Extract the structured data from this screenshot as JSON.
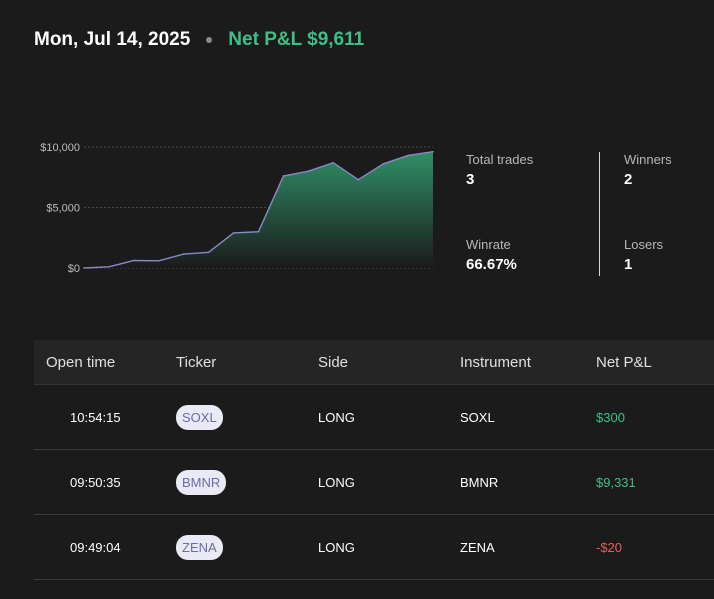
{
  "header": {
    "date": "Mon, Jul 14, 2025",
    "net_pnl": "Net P&L $9,611"
  },
  "chart_data": {
    "type": "area",
    "y_ticks": [
      "$10,000",
      "$5,000",
      "$0"
    ],
    "ylim": [
      0,
      10000
    ],
    "grid": true,
    "series": [
      {
        "values": [
          0,
          100,
          620,
          590,
          1150,
          1300,
          2900,
          3000,
          7600,
          8000,
          8700,
          7300,
          8600,
          9300,
          9611
        ]
      }
    ],
    "colors": {
      "line": "#8b87c8",
      "fill_top": "#2f8f68",
      "fill_bottom": "#1b1b1b"
    }
  },
  "stats": {
    "total_trades_label": "Total trades",
    "total_trades": "3",
    "winners_label": "Winners",
    "winners": "2",
    "winrate_label": "Winrate",
    "winrate": "66.67%",
    "losers_label": "Losers",
    "losers": "1"
  },
  "table": {
    "headers": [
      "Open time",
      "Ticker",
      "Side",
      "Instrument",
      "Net P&L"
    ],
    "rows": [
      {
        "time": "10:54:15",
        "ticker": "SOXL",
        "side": "LONG",
        "instrument": "SOXL",
        "pnl": "$300"
      },
      {
        "time": "09:50:35",
        "ticker": "BMNR",
        "side": "LONG",
        "instrument": "BMNR",
        "pnl": "$9,331"
      },
      {
        "time": "09:49:04",
        "ticker": "ZENA",
        "side": "LONG",
        "instrument": "ZENA",
        "pnl": "-$20"
      }
    ]
  },
  "colors": {
    "positive": "#3fbf88",
    "negative": "#ef5b5b",
    "background": "#1b1b1b"
  }
}
